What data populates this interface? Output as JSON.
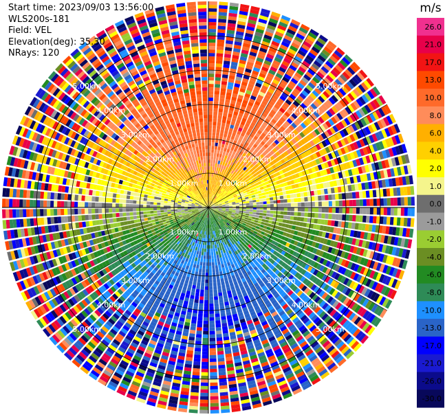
{
  "header": {
    "start_time": "Start time: 2023/09/03 13:56:00",
    "instrument": "WLS200s-181",
    "field": "Field: VEL",
    "elevation": "Elevation(deg): 35.30",
    "nrays": "NRays: 120"
  },
  "chart_data": {
    "type": "heatmap",
    "projection": "polar-ppi",
    "field": "VEL",
    "units": "m/s",
    "n_rays": 120,
    "max_range_km": 6,
    "ring_labels": [
      {
        "text": "1.00km",
        "range_km": 1
      },
      {
        "text": "2.00km",
        "range_km": 2
      },
      {
        "text": "3.00km",
        "range_km": 3
      },
      {
        "text": "4.00km",
        "range_km": 4
      },
      {
        "text": "5.00km",
        "range_km": 5
      }
    ],
    "colorbar": {
      "unit_label": "m/s",
      "ticks": [
        "26.0",
        "21.0",
        "17.0",
        "13.0",
        "10.0",
        "8.0",
        "6.0",
        "4.0",
        "2.0",
        "1.0",
        "0.0",
        "-1.0",
        "-2.0",
        "-4.0",
        "-6.0",
        "-8.0",
        "-10.0",
        "-13.0",
        "-17.0",
        "-21.0",
        "-26.0",
        "-30.0"
      ],
      "colors": [
        "#f0308f",
        "#e8004a",
        "#f21414",
        "#ff4a00",
        "#ff6a2a",
        "#ff8c5a",
        "#ffb000",
        "#ffd000",
        "#ffff00",
        "#f5f58c",
        "#6e6e6e",
        "#9b9b9b",
        "#9acd32",
        "#6b8e23",
        "#228b22",
        "#2e8b57",
        "#1e90ff",
        "#2a64c8",
        "#0000ff",
        "#1a1ad0",
        "#0b0b8b",
        "#08085a"
      ]
    },
    "wind_pattern": {
      "toward_direction_deg": 0,
      "max_radial_velocity_ms": 13,
      "clean_range_km": 3.4
    }
  }
}
